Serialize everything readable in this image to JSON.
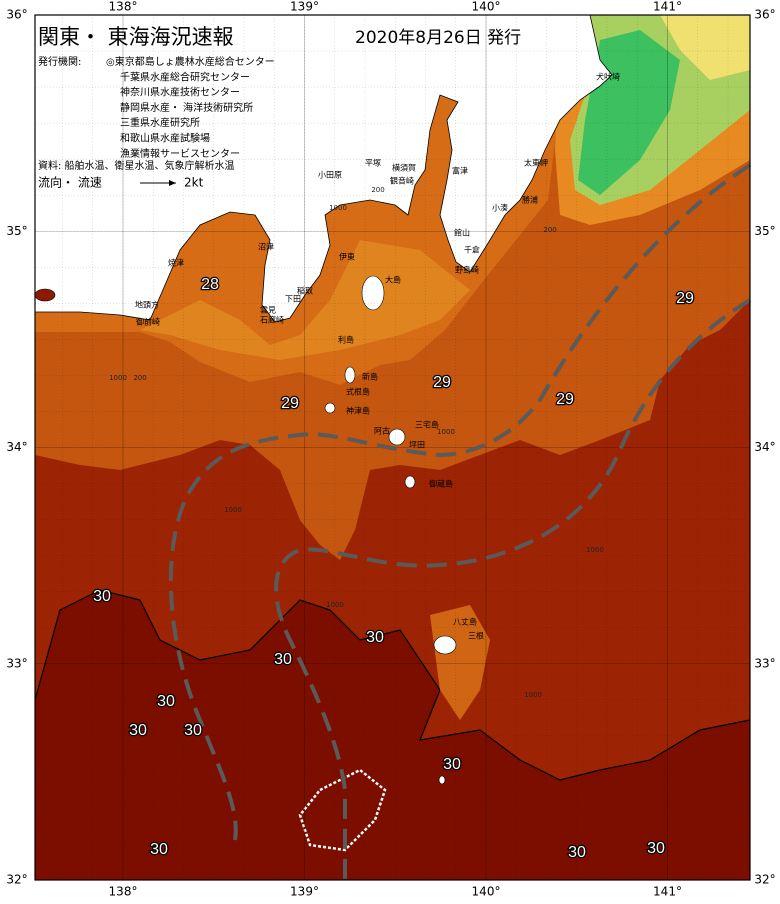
{
  "header": {
    "title": "関東・ 東海海況速報",
    "issued": "2020年8月26日 発行"
  },
  "issuers": {
    "label": "発行機関:",
    "list": [
      "◎東京都島しょ農林水産総合センター",
      "千葉県水産総合研究センター",
      "神奈川県水産技術センター",
      "静岡県水産・ 海洋技術研究所",
      "三重県水産研究所",
      "和歌山県水産試験場",
      "漁業情報サービスセンター"
    ]
  },
  "source": "資料: 船舶水温、衛星水温、気象庁解析水温",
  "legend": {
    "label": "流向・ 流速",
    "speed": "2kt"
  },
  "lon_ticks": [
    {
      "value": 138,
      "label": "138°"
    },
    {
      "value": 139,
      "label": "139°"
    },
    {
      "value": 140,
      "label": "140°"
    },
    {
      "value": 141,
      "label": "141°"
    }
  ],
  "lat_ticks": [
    {
      "value": 36,
      "label": "36°"
    },
    {
      "value": 35,
      "label": "35°"
    },
    {
      "value": 34,
      "label": "34°"
    },
    {
      "value": 33,
      "label": "33°"
    },
    {
      "value": 32,
      "label": "32°"
    }
  ],
  "temperature_labels": [
    28,
    29,
    29,
    29,
    29,
    30,
    30,
    30,
    30,
    30,
    30,
    30,
    30,
    30,
    30
  ],
  "place_names": [
    "犬吠埼",
    "太東岬",
    "勝浦",
    "小湊",
    "館山",
    "千倉",
    "野島崎",
    "富津",
    "横須賀",
    "観音崎",
    "平塚",
    "小田原",
    "伊東",
    "稲取",
    "大島",
    "下田",
    "雲見",
    "石廊崎",
    "沼津",
    "焼津",
    "地頭方",
    "御前崎",
    "利島",
    "新島",
    "式根島",
    "神津島",
    "三宅島",
    "阿古",
    "坪田",
    "御蔵島",
    "八丈島",
    "三根"
  ],
  "depth_labels": [
    1000,
    200,
    200,
    1000,
    1000,
    200,
    1000,
    1000,
    1000,
    1000
  ]
}
